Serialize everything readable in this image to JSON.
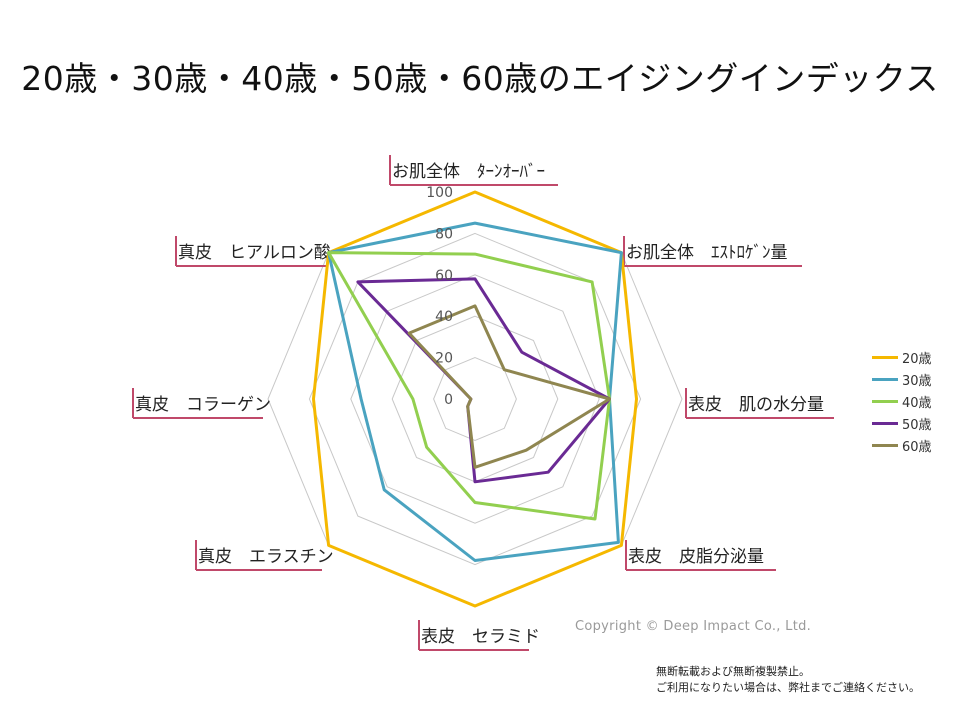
{
  "page_title": "20歳・30歳・40歳・50歳・60歳のエイジングインデックス",
  "copyright": "Copyright © Deep Impact  Co., Ltd.",
  "notice_lines": [
    "無断転載および無断複製禁止。",
    "ご利用になりたい場合は、弊社までご連絡ください。"
  ],
  "chart_data": {
    "type": "radar",
    "title": "20歳・30歳・40歳・50歳・60歳のエイジングインデックス",
    "axes": [
      "お肌全体　ﾀｰﾝｵｰﾊﾞｰ",
      "お肌全体　ｴｽﾄﾛｹﾞﾝ量",
      "表皮　肌の水分量",
      "表皮　皮脂分泌量",
      "表皮　セラミド",
      "真皮　エラスチン",
      "真皮　コラーゲン",
      "真皮　ヒアルロン酸"
    ],
    "ticks": [
      0,
      20,
      40,
      60,
      80,
      100
    ],
    "range": [
      0,
      100
    ],
    "grid": true,
    "legend_position": "right",
    "series": [
      {
        "name": "20歳",
        "color": "#f5b800",
        "values": [
          100,
          100,
          78,
          100,
          100,
          100,
          78,
          100
        ]
      },
      {
        "name": "30歳",
        "color": "#4aa3c0",
        "values": [
          85,
          100,
          65,
          98,
          78,
          62,
          55,
          100
        ]
      },
      {
        "name": "40歳",
        "color": "#92cf4f",
        "values": [
          70,
          80,
          65,
          82,
          50,
          33,
          30,
          100
        ]
      },
      {
        "name": "50歳",
        "color": "#6a2a94",
        "values": [
          58,
          32,
          65,
          50,
          40,
          5,
          2,
          80
        ]
      },
      {
        "name": "60歳",
        "color": "#8f8650",
        "values": [
          45,
          20,
          65,
          35,
          33,
          5,
          2,
          45
        ]
      }
    ]
  }
}
